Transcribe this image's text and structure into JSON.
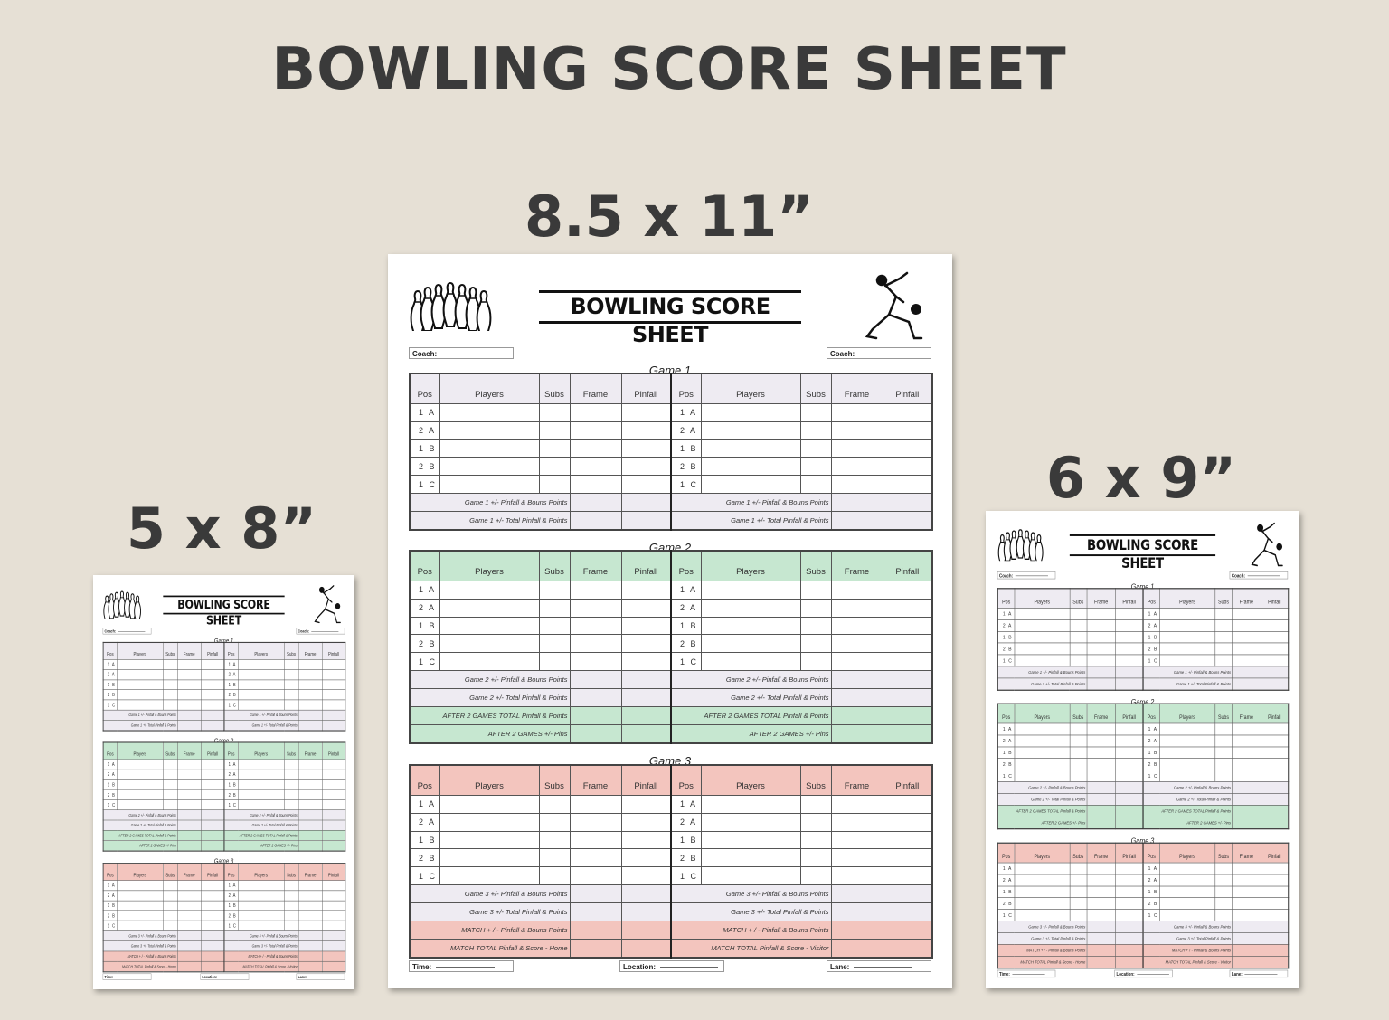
{
  "page": {
    "title": "BOWLING SCORE SHEET",
    "size_large": "8.5 x 11”",
    "size_small": "5 x 8”",
    "size_medium": "6 x 9”"
  },
  "sheet": {
    "title": "BOWLING SCORE SHEET",
    "coach_label": "Coach:",
    "columns": [
      "Pos",
      "Players",
      "Subs",
      "Frame",
      "Pinfall"
    ],
    "positions": [
      "1A",
      "2A",
      "1B",
      "2B",
      "1C"
    ],
    "games": [
      {
        "label": "Game 1",
        "header_tone": "lavender",
        "summary": [
          {
            "home": "Game 1 +/- Pinfall & Bouns Points",
            "visitor": "Game 1 +/- Pinfall & Bouns Points",
            "tone": "lavender"
          },
          {
            "home": "Game 1 +/- Total Pinfall & Points",
            "visitor": "Game 1 +/- Total Pinfall & Points",
            "tone": "lavender"
          }
        ]
      },
      {
        "label": "Game 2",
        "header_tone": "green",
        "summary": [
          {
            "home": "Game 2 +/- Pinfall & Bouns Points",
            "visitor": "Game 2 +/- Pinfall & Bouns Points",
            "tone": "lavender"
          },
          {
            "home": "Game 2 +/- Total Pinfall & Points",
            "visitor": "Game 2 +/- Total Pinfall & Points",
            "tone": "lavender"
          },
          {
            "home": "AFTER 2 GAMES TOTAL Pinfall & Points",
            "visitor": "AFTER 2 GAMES TOTAL Pinfall & Points",
            "tone": "green"
          },
          {
            "home": "AFTER 2 GAMES +/- Pins",
            "visitor": "AFTER 2 GAMES +/- Pins",
            "tone": "green"
          }
        ]
      },
      {
        "label": "Game 3",
        "header_tone": "pink",
        "summary": [
          {
            "home": "Game 3 +/- Pinfall & Bouns Points",
            "visitor": "Game 3 +/- Pinfall & Bouns Points",
            "tone": "lavender"
          },
          {
            "home": "Game 3 +/- Total Pinfall & Points",
            "visitor": "Game 3 +/- Total Pinfall & Points",
            "tone": "lavender"
          },
          {
            "home": "MATCH + / -  Pinfall & Bouns Points",
            "visitor": "MATCH + / -  Pinfall & Bouns Points",
            "tone": "pink"
          },
          {
            "home": "MATCH TOTAL Pinfall & Score - Home",
            "visitor": "MATCH TOTAL Pinfall & Score - Visitor",
            "tone": "pink"
          }
        ]
      }
    ],
    "footer": [
      "Time:",
      "Location:",
      "Lane:"
    ]
  },
  "colors": {
    "background": "#e6e0d5",
    "lavender": "#eeebf2",
    "green": "#c6e7d0",
    "pink": "#f3c5be",
    "text": "#3a3a3a"
  },
  "icons": {
    "logo_left": "bowling-pins-icon",
    "logo_right": "bowler-icon"
  }
}
